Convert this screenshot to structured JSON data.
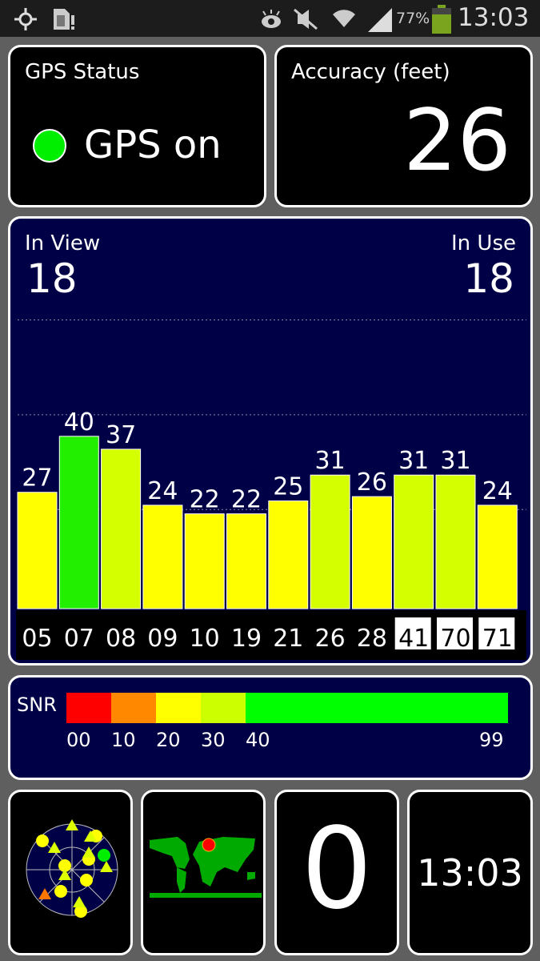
{
  "status_bar": {
    "icons": [
      "gps-icon",
      "sim-alert-icon",
      "eye-icon",
      "mute-icon",
      "wifi-icon",
      "signal-icon",
      "battery-icon"
    ],
    "battery": "77%",
    "battery_level": 0.77,
    "time": "13:03"
  },
  "gps_status": {
    "title": "GPS Status",
    "value": "GPS on",
    "indicator_color": "#00ee00"
  },
  "accuracy": {
    "title": "Accuracy (feet)",
    "value": "26"
  },
  "satellites": {
    "in_view_label": "In View",
    "in_view": "18",
    "in_use_label": "In Use",
    "in_use": "18"
  },
  "chart_data": {
    "type": "bar",
    "categories": [
      "05",
      "07",
      "08",
      "09",
      "10",
      "19",
      "21",
      "26",
      "28",
      "41",
      "70",
      "71"
    ],
    "values": [
      27,
      40,
      37,
      24,
      22,
      22,
      25,
      31,
      26,
      31,
      31,
      24
    ],
    "value_labels": [
      "27",
      "40",
      "37",
      "24",
      "22",
      "22",
      "25",
      "31",
      "26",
      "31",
      "31",
      "24"
    ],
    "highlighted_categories": [
      "41",
      "70",
      "71"
    ],
    "colors": {
      "low": "#ffff00",
      "mid": "#d4ff00",
      "high": "#22ee00"
    }
  },
  "snr": {
    "label": "SNR",
    "ticks": [
      "00",
      "10",
      "20",
      "30",
      "40",
      "99"
    ],
    "segments": [
      {
        "from": 0,
        "to": 10,
        "color": "#ff0000"
      },
      {
        "from": 10,
        "to": 20,
        "color": "#ff8800"
      },
      {
        "from": 20,
        "to": 30,
        "color": "#ffff00"
      },
      {
        "from": 30,
        "to": 40,
        "color": "#ccff00"
      },
      {
        "from": 40,
        "to": 99,
        "color": "#00ff00"
      }
    ]
  },
  "tiles": {
    "count": "0",
    "clock": "13:03"
  }
}
